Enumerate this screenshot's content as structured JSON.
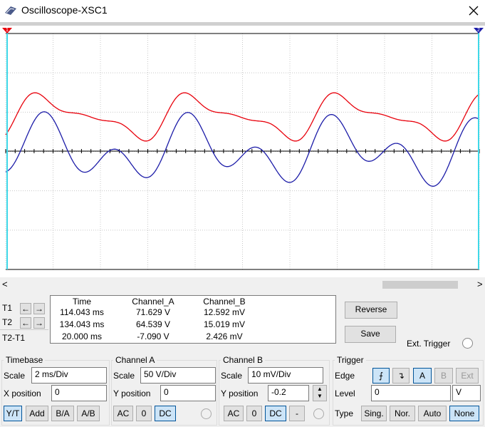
{
  "window": {
    "title": "Oscilloscope-XSC1"
  },
  "cursor_markers": [
    "1",
    "2"
  ],
  "cursors": {
    "rows": [
      "T1",
      "T2",
      "T2-T1"
    ],
    "headers": [
      "Time",
      "Channel_A",
      "Channel_B"
    ],
    "values": [
      [
        "114.043 ms",
        "71.629 V",
        "12.592 mV"
      ],
      [
        "134.043 ms",
        "64.539 V",
        "15.019 mV"
      ],
      [
        "20.000 ms",
        "-7.090 V",
        "2.426 mV"
      ]
    ]
  },
  "buttons": {
    "reverse": "Reverse",
    "save": "Save"
  },
  "ext_trigger": "Ext. Trigger",
  "timebase": {
    "title": "Timebase",
    "scale_label": "Scale",
    "scale": "2 ms/Div",
    "xpos_label": "X position",
    "xpos": "0",
    "modes": [
      "Y/T",
      "Add",
      "B/A",
      "A/B"
    ]
  },
  "channel_a": {
    "title": "Channel A",
    "scale_label": "Scale",
    "scale": "50  V/Div",
    "ypos_label": "Y position",
    "ypos": "0",
    "coupling": [
      "AC",
      "0",
      "DC"
    ]
  },
  "channel_b": {
    "title": "Channel B",
    "scale_label": "Scale",
    "scale": "10 mV/Div",
    "ypos_label": "Y position",
    "ypos": "-0.2",
    "coupling": [
      "AC",
      "0",
      "DC",
      "-"
    ]
  },
  "trigger": {
    "title": "Trigger",
    "edge_label": "Edge",
    "edge_buttons": [
      "A",
      "B",
      "Ext"
    ],
    "level_label": "Level",
    "level": "0",
    "level_unit": "V",
    "type_label": "Type",
    "types": [
      "Sing.",
      "Nor.",
      "Auto",
      "None"
    ]
  }
}
